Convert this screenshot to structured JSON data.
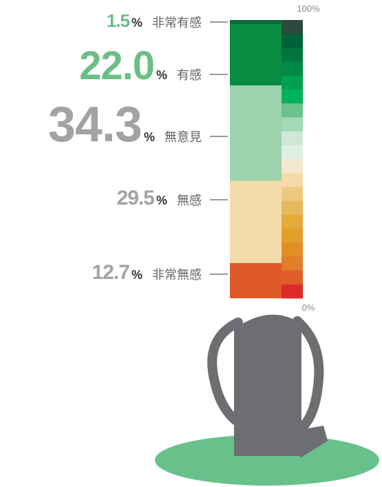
{
  "chart_data": {
    "type": "stacked-bar",
    "categories": [
      "非常有感",
      "有感",
      "無意見",
      "無感",
      "非常無感"
    ],
    "values": [
      1.5,
      22.0,
      34.3,
      29.5,
      12.7
    ],
    "value_labels": [
      "1.5",
      "22.0",
      "34.3",
      "29.5",
      "12.7"
    ],
    "unit": "%",
    "colors": [
      "#0b6b3e",
      "#078c42",
      "#9cd3ac",
      "#f4dcaa",
      "#df5a29"
    ],
    "ylim": [
      0,
      100
    ],
    "yticks": [
      {
        "value": 0,
        "label": "0%"
      },
      {
        "value": 100,
        "label": "100%"
      }
    ]
  }
}
